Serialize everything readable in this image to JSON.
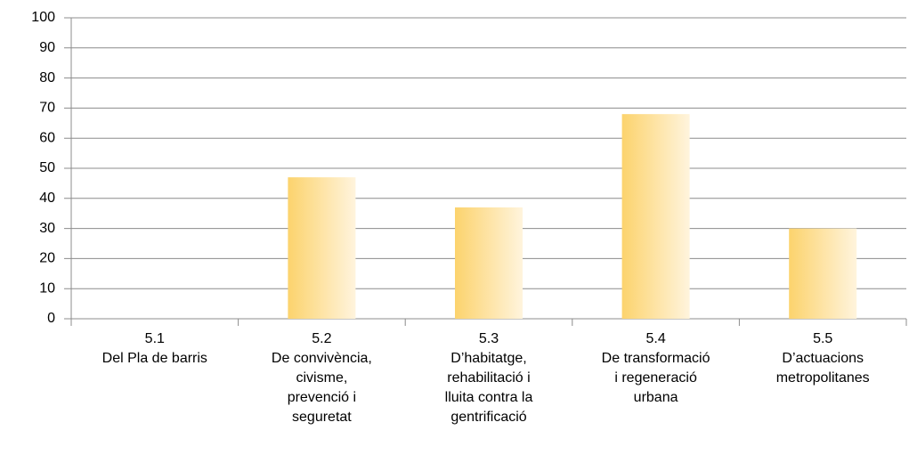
{
  "chart_data": {
    "type": "bar",
    "categories": [
      [
        "5.1",
        "Del Pla de barris"
      ],
      [
        "5.2",
        "De convivència,",
        "civisme,",
        "prevenció i",
        "seguretat"
      ],
      [
        "5.3",
        "D’habitatge,",
        "rehabilitació i",
        "lluita contra la",
        "gentrificació"
      ],
      [
        "5.4",
        "De transformació",
        "i regeneració",
        "urbana"
      ],
      [
        "5.5",
        "D’actuacions",
        "metropolitanes"
      ]
    ],
    "values": [
      0,
      47,
      37,
      68,
      30
    ],
    "gradient": [
      "#fcd36d",
      "#fff4dd"
    ],
    "ylim": [
      0,
      100
    ],
    "yticks": [
      0,
      10,
      20,
      30,
      40,
      50,
      60,
      70,
      80,
      90,
      100
    ],
    "grid": true
  }
}
